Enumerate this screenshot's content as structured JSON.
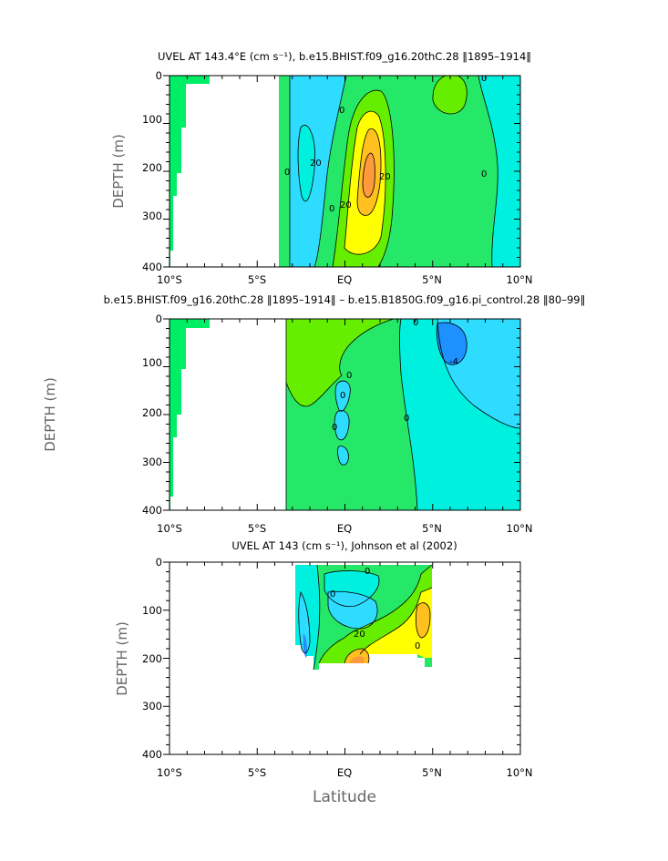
{
  "figure": {
    "shared_xlabel": "Latitude",
    "shared_ylabel": "DEPTH (m)"
  },
  "chart_data": [
    {
      "type": "heatmap",
      "title": "UVEL AT 143.4°E (cm s⁻¹), b.e15.BHIST.f09_g16.20thC.28 ‖1895–1914‖",
      "ylabel": "DEPTH (m)",
      "xlim": [
        -10,
        10
      ],
      "ylim": [
        400,
        0
      ],
      "xtick_labels": [
        "10°S",
        "5°S",
        "EQ",
        "5°N",
        "10°N"
      ],
      "ytick_labels": [
        "0",
        "100",
        "200",
        "300",
        "400"
      ],
      "contour_labels": [
        "0",
        "20",
        "20",
        "20",
        "0",
        "0",
        "0",
        "0"
      ],
      "features": [
        {
          "kind": "core",
          "lat": 1.2,
          "depth": 190,
          "value": 40
        },
        {
          "kind": "surface max",
          "lat": 5.5,
          "depth": 60,
          "value": 20
        },
        {
          "kind": "westward",
          "lat": -1.8,
          "depth": 150,
          "value": -20
        }
      ]
    },
    {
      "type": "heatmap",
      "title": "b.e15.BHIST.f09_g16.20thC.28 ‖1895–1914‖ – b.e15.B1850G.f09_g16.pi_control.28 ‖80–99‖",
      "ylabel": "DEPTH (m)",
      "xlim": [
        -10,
        10
      ],
      "ylim": [
        400,
        0
      ],
      "xtick_labels": [
        "10°S",
        "5°S",
        "EQ",
        "5°N",
        "10°N"
      ],
      "ytick_labels": [
        "0",
        "100",
        "200",
        "300",
        "400"
      ],
      "contour_labels": [
        "-4",
        "0",
        "0",
        "0",
        "0",
        "0"
      ],
      "features": [
        {
          "kind": "minimum",
          "lat": 7,
          "depth": 90,
          "value": -4
        }
      ]
    },
    {
      "type": "heatmap",
      "title": "UVEL AT 143 (cm s⁻¹), Johnson et al (2002)",
      "ylabel": "DEPTH (m)",
      "xlabel": "Latitude",
      "xlim": [
        -10,
        10
      ],
      "ylim": [
        400,
        0
      ],
      "xtick_labels": [
        "10°S",
        "5°S",
        "EQ",
        "5°N",
        "10°N"
      ],
      "ytick_labels": [
        "0",
        "100",
        "200",
        "300",
        "400"
      ],
      "contour_labels": [
        "20",
        "0",
        "0",
        "0"
      ],
      "features": [
        {
          "kind": "core",
          "lat": 0.4,
          "depth": 205,
          "value": 40
        },
        {
          "kind": "max",
          "lat": 4.3,
          "depth": 90,
          "value": 40
        }
      ]
    }
  ],
  "palette": {
    "neg_strong": "#1e90ff",
    "neg": "#2ddcff",
    "neg_weak": "#00f0e0",
    "zero": "#26e868",
    "pos_weak": "#66ee00",
    "pos": "#ffff00",
    "pos_strong": "#ffc020",
    "pos_max": "#ff9a3c",
    "land": "#00ee66"
  }
}
